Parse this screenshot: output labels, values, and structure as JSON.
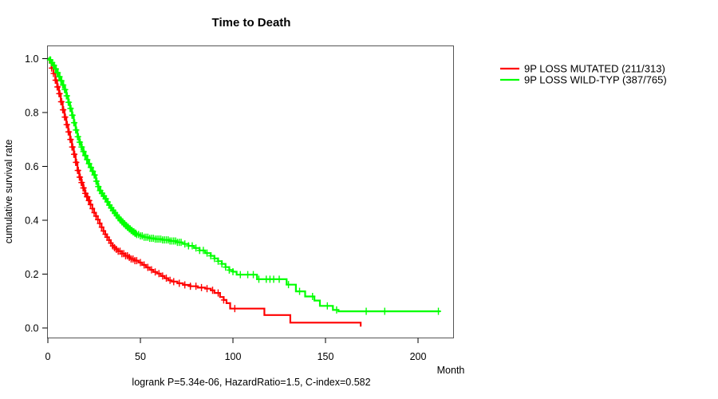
{
  "chart_data": {
    "type": "line",
    "chart_kind": "kaplan_meier_survival_step",
    "title": "Time to Death",
    "xlabel": "Month",
    "ylabel": "cumulative survival rate",
    "footer": "logrank P=5.34e-06, HazardRatio=1.5, C-index=0.582",
    "xlim": [
      0,
      219
    ],
    "ylim": [
      -0.036,
      1.049
    ],
    "grid": false,
    "legend_position": "right-outside",
    "x_ticks": [
      {
        "value": 0,
        "label": "0"
      },
      {
        "value": 50,
        "label": "50"
      },
      {
        "value": 100,
        "label": "100"
      },
      {
        "value": 150,
        "label": "150"
      },
      {
        "value": 200,
        "label": "200"
      }
    ],
    "y_ticks": [
      {
        "value": 0.0,
        "label": "0.0"
      },
      {
        "value": 0.2,
        "label": "0.2"
      },
      {
        "value": 0.4,
        "label": "0.4"
      },
      {
        "value": 0.6,
        "label": "0.6"
      },
      {
        "value": 0.8,
        "label": "0.8"
      },
      {
        "value": 1.0,
        "label": "1.0"
      }
    ],
    "series": [
      {
        "name": "9P LOSS MUTATED (211/313)",
        "color": "#ff0000",
        "steps": [
          [
            0,
            1.0
          ],
          [
            1,
            0.985
          ],
          [
            2,
            0.965
          ],
          [
            3,
            0.945
          ],
          [
            4,
            0.92
          ],
          [
            5,
            0.895
          ],
          [
            6,
            0.87
          ],
          [
            7,
            0.84
          ],
          [
            8,
            0.81
          ],
          [
            9,
            0.783
          ],
          [
            10,
            0.755
          ],
          [
            11,
            0.728
          ],
          [
            12,
            0.7
          ],
          [
            13,
            0.672
          ],
          [
            14,
            0.645
          ],
          [
            15,
            0.615
          ],
          [
            16,
            0.585
          ],
          [
            17,
            0.56
          ],
          [
            18,
            0.54
          ],
          [
            19,
            0.52
          ],
          [
            20,
            0.5
          ],
          [
            21,
            0.487
          ],
          [
            22,
            0.473
          ],
          [
            23,
            0.458
          ],
          [
            24,
            0.443
          ],
          [
            25,
            0.428
          ],
          [
            26,
            0.415
          ],
          [
            27,
            0.402
          ],
          [
            28,
            0.388
          ],
          [
            29,
            0.374
          ],
          [
            30,
            0.36
          ],
          [
            31,
            0.348
          ],
          [
            32,
            0.337
          ],
          [
            33,
            0.326
          ],
          [
            34,
            0.315
          ],
          [
            35,
            0.305
          ],
          [
            36,
            0.298
          ],
          [
            37,
            0.292
          ],
          [
            38,
            0.285
          ],
          [
            40,
            0.276
          ],
          [
            42,
            0.268
          ],
          [
            44,
            0.262
          ],
          [
            45,
            0.256
          ],
          [
            47,
            0.25
          ],
          [
            49,
            0.243
          ],
          [
            51,
            0.234
          ],
          [
            53,
            0.225
          ],
          [
            55,
            0.216
          ],
          [
            57,
            0.208
          ],
          [
            59,
            0.202
          ],
          [
            61,
            0.193
          ],
          [
            63,
            0.185
          ],
          [
            65,
            0.177
          ],
          [
            67,
            0.172
          ],
          [
            70,
            0.166
          ],
          [
            73,
            0.16
          ],
          [
            77,
            0.155
          ],
          [
            81,
            0.15
          ],
          [
            85,
            0.146
          ],
          [
            88,
            0.14
          ],
          [
            90,
            0.13
          ],
          [
            93,
            0.115
          ],
          [
            95,
            0.104
          ],
          [
            96.5,
            0.092
          ],
          [
            98.5,
            0.072
          ],
          [
            117,
            0.048
          ],
          [
            131,
            0.02
          ],
          [
            169,
            0.005
          ]
        ],
        "censor_marks": [
          2,
          3,
          4,
          4.5,
          5,
          5.5,
          6,
          6.5,
          7,
          7.5,
          8,
          8.5,
          9,
          9.5,
          10,
          10.5,
          11,
          11.5,
          12,
          12.5,
          13,
          13.5,
          14,
          14.5,
          15,
          15.5,
          16,
          16.5,
          17,
          17.5,
          18,
          18.5,
          19,
          19.5,
          20,
          20.5,
          21,
          21.5,
          22,
          22.5,
          23,
          24,
          25,
          26,
          27,
          28,
          29,
          30,
          31,
          32,
          33,
          34,
          35,
          36,
          37,
          38,
          39,
          40,
          41,
          42,
          43,
          44,
          45,
          46,
          47,
          48,
          50,
          52,
          54,
          56,
          58,
          60,
          62,
          64,
          66,
          68,
          71,
          74,
          77,
          80,
          83,
          86,
          89,
          92,
          95,
          101
        ]
      },
      {
        "name": "9P LOSS WILD-TYP (387/765)",
        "color": "#00ff00",
        "steps": [
          [
            0,
            1.0
          ],
          [
            1,
            0.995
          ],
          [
            2,
            0.985
          ],
          [
            3,
            0.975
          ],
          [
            4,
            0.962
          ],
          [
            5,
            0.948
          ],
          [
            6,
            0.933
          ],
          [
            7,
            0.918
          ],
          [
            8,
            0.902
          ],
          [
            9,
            0.885
          ],
          [
            10,
            0.862
          ],
          [
            11,
            0.838
          ],
          [
            12,
            0.815
          ],
          [
            13,
            0.79
          ],
          [
            14,
            0.762
          ],
          [
            15,
            0.735
          ],
          [
            16,
            0.71
          ],
          [
            17,
            0.69
          ],
          [
            18,
            0.672
          ],
          [
            19,
            0.655
          ],
          [
            20,
            0.64
          ],
          [
            21,
            0.625
          ],
          [
            22,
            0.61
          ],
          [
            23,
            0.596
          ],
          [
            24,
            0.582
          ],
          [
            25,
            0.568
          ],
          [
            26,
            0.545
          ],
          [
            27,
            0.525
          ],
          [
            28,
            0.51
          ],
          [
            29,
            0.5
          ],
          [
            30,
            0.49
          ],
          [
            31,
            0.48
          ],
          [
            32,
            0.468
          ],
          [
            33,
            0.456
          ],
          [
            34,
            0.446
          ],
          [
            35,
            0.436
          ],
          [
            36,
            0.427
          ],
          [
            37,
            0.418
          ],
          [
            38,
            0.409
          ],
          [
            39,
            0.401
          ],
          [
            40,
            0.394
          ],
          [
            41,
            0.387
          ],
          [
            42,
            0.38
          ],
          [
            43,
            0.374
          ],
          [
            44,
            0.368
          ],
          [
            45,
            0.362
          ],
          [
            46,
            0.357
          ],
          [
            47,
            0.352
          ],
          [
            48,
            0.347
          ],
          [
            50,
            0.342
          ],
          [
            52,
            0.337
          ],
          [
            55,
            0.333
          ],
          [
            58,
            0.33
          ],
          [
            62,
            0.327
          ],
          [
            66,
            0.323
          ],
          [
            70,
            0.318
          ],
          [
            73,
            0.312
          ],
          [
            76,
            0.305
          ],
          [
            79,
            0.297
          ],
          [
            82,
            0.288
          ],
          [
            85,
            0.278
          ],
          [
            88,
            0.268
          ],
          [
            90,
            0.258
          ],
          [
            92,
            0.248
          ],
          [
            94,
            0.238
          ],
          [
            96,
            0.226
          ],
          [
            98,
            0.215
          ],
          [
            100,
            0.209
          ],
          [
            102,
            0.198
          ],
          [
            113,
            0.181
          ],
          [
            129,
            0.161
          ],
          [
            134,
            0.136
          ],
          [
            139,
            0.117
          ],
          [
            144,
            0.102
          ],
          [
            147,
            0.082
          ],
          [
            154,
            0.067
          ],
          [
            157,
            0.062
          ],
          [
            212,
            0.062
          ]
        ],
        "censor_marks": [
          1,
          1.5,
          2,
          2.5,
          3,
          3.5,
          4,
          4.5,
          5,
          5.5,
          6,
          6.5,
          7,
          7.5,
          8,
          8.5,
          9,
          9.5,
          10,
          10.5,
          11,
          11.5,
          12,
          12.5,
          13,
          13.5,
          14,
          14.5,
          15,
          15.5,
          16,
          16.5,
          17,
          17.5,
          18,
          18.5,
          19,
          19.5,
          20,
          20.5,
          21,
          21.5,
          22,
          22.5,
          23,
          23.5,
          24,
          24.5,
          25,
          25.5,
          26,
          26.5,
          27,
          27.5,
          28,
          28.5,
          29,
          29.5,
          30,
          30.5,
          31,
          31.5,
          32,
          32.5,
          33,
          33.5,
          34,
          34.5,
          35,
          35.5,
          36,
          36.5,
          37,
          37.5,
          38,
          38.5,
          39,
          39.5,
          40,
          40.5,
          41,
          41.5,
          42,
          42.5,
          43,
          43.5,
          44,
          44.5,
          45,
          45.5,
          46,
          46.5,
          47,
          47.5,
          48,
          49,
          50,
          51,
          52,
          53,
          54,
          55,
          56,
          57,
          58,
          59,
          60,
          61,
          62,
          63,
          64,
          65,
          66,
          67,
          68,
          69,
          70,
          71,
          72,
          74,
          76,
          78,
          80,
          82,
          84,
          86,
          88,
          90,
          92,
          94,
          96,
          98,
          100,
          104,
          108,
          111,
          114,
          118,
          120,
          122,
          125,
          130,
          136,
          143,
          151,
          156,
          172,
          182,
          211
        ]
      }
    ]
  }
}
